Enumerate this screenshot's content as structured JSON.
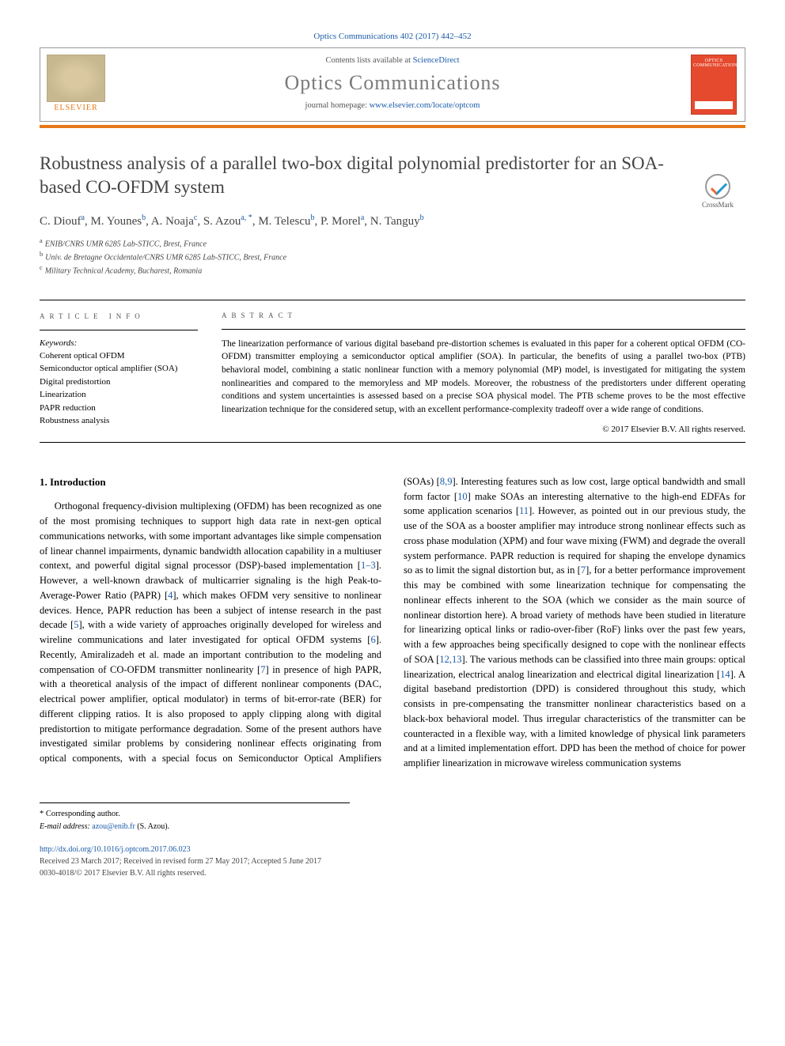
{
  "header": {
    "citation": "Optics Communications 402 (2017) 442–452",
    "contents_line_prefix": "Contents lists available at ",
    "contents_link": "ScienceDirect",
    "journal_name": "Optics Communications",
    "homepage_prefix": "journal homepage: ",
    "homepage_url": "www.elsevier.com/locate/optcom",
    "publisher_logo_label": "ELSEVIER",
    "cover_title": "OPTICS COMMUNICATIONS"
  },
  "crossmark": {
    "label": "CrossMark"
  },
  "article": {
    "title": "Robustness analysis of a parallel two-box digital polynomial predistorter for an SOA-based CO-OFDM system",
    "authors_html": "C. Diouf<sup>a</sup>, M. Younes<sup>b</sup>, A. Noaja<sup>c</sup>, S. Azou<sup>a, *</sup>, M. Telescu<sup>b</sup>, P. Morel<sup>a</sup>, N. Tanguy<sup>b</sup>",
    "affiliations": [
      {
        "sup": "a",
        "text": "ENIB/CNRS UMR 6285 Lab-STICC, Brest, France"
      },
      {
        "sup": "b",
        "text": "Univ. de Bretagne Occidentale/CNRS UMR 6285 Lab-STICC, Brest, France"
      },
      {
        "sup": "c",
        "text": "Military Technical Academy, Bucharest, Romania"
      }
    ]
  },
  "info": {
    "section_label": "article info",
    "keywords_label": "Keywords:",
    "keywords": [
      "Coherent optical OFDM",
      "Semiconductor optical amplifier (SOA)",
      "Digital predistortion",
      "Linearization",
      "PAPR reduction",
      "Robustness analysis"
    ]
  },
  "abstract": {
    "section_label": "abstract",
    "text": "The linearization performance of various digital baseband pre-distortion schemes is evaluated in this paper for a coherent optical OFDM (CO-OFDM) transmitter employing a semiconductor optical amplifier (SOA). In particular, the benefits of using a parallel two-box (PTB) behavioral model, combining a static nonlinear function with a memory polynomial (MP) model, is investigated for mitigating the system nonlinearities and compared to the memoryless and MP models. Moreover, the robustness of the predistorters under different operating conditions and system uncertainties is assessed based on a precise SOA physical model. The PTB scheme proves to be the most effective linearization technique for the considered setup, with an excellent performance-complexity tradeoff over a wide range of conditions.",
    "copyright": "© 2017 Elsevier B.V. All rights reserved."
  },
  "body": {
    "section_number": "1.",
    "section_title": "Introduction",
    "col1": "Orthogonal frequency-division multiplexing (OFDM) has been recognized as one of the most promising techniques to support high data rate in next-gen optical communications networks, with some important advantages like simple compensation of linear channel impairments, dynamic bandwidth allocation capability in a multiuser context, and powerful digital signal processor (DSP)-based implementation [1–3]. However, a well-known drawback of multicarrier signaling is the high Peak-to-Average-Power Ratio (PAPR) [4], which makes OFDM very sensitive to nonlinear devices. Hence, PAPR reduction has been a subject of intense research in the past decade [5], with a wide variety of approaches originally developed for wireless and wireline communications and later investigated for optical OFDM systems [6]. Recently, Amiralizadeh et al. made an important contribution to the modeling and compensation of CO-OFDM transmitter nonlinearity [7] in presence of high PAPR, with a theoretical analysis of the impact of different nonlinear components (DAC, electrical power amplifier, optical modulator) in terms of bit-error-rate (BER) for different clipping ratios. It is also proposed to apply clipping along with digital predistortion to mitigate performance degradation. Some of the present authors have investigated similar problems by considering nonlinear effects originating from optical components, with a special focus on Semiconductor Optical Amplifiers (SOAs) [8,9]. Interesting features such as low cost, large",
    "col2": "optical bandwidth and small form factor [10] make SOAs an interesting alternative to the high-end EDFAs for some application scenarios [11]. However, as pointed out in our previous study, the use of the SOA as a booster amplifier may introduce strong nonlinear effects such as cross phase modulation (XPM) and four wave mixing (FWM) and degrade the overall system performance. PAPR reduction is required for shaping the envelope dynamics so as to limit the signal distortion but, as in [7], for a better performance improvement this may be combined with some linearization technique for compensating the nonlinear effects inherent to the SOA (which we consider as the main source of nonlinear distortion here). A broad variety of methods have been studied in literature for linearizing optical links or radio-over-fiber (RoF) links over the past few years, with a few approaches being specifically designed to cope with the nonlinear effects of SOA [12,13]. The various methods can be classified into three main groups: optical linearization, electrical analog linearization and electrical digital linearization [14]. A digital baseband predistortion (DPD) is considered throughout this study, which consists in pre-compensating the transmitter nonlinear characteristics based on a black-box behavioral model. Thus irregular characteristics of the transmitter can be counteracted in a flexible way, with a limited knowledge of physical link parameters and at a limited implementation effort. DPD has been the method of choice for power amplifier linearization in microwave wireless communication systems",
    "refs": {
      "r1_3": "1–3",
      "r4": "4",
      "r5": "5",
      "r6": "6",
      "r7a": "7",
      "r8_9": "8,9",
      "r10": "10",
      "r11": "11",
      "r7b": "7",
      "r12_13": "12,13",
      "r14": "14"
    }
  },
  "footnotes": {
    "corresponding": "Corresponding author.",
    "email_label": "E-mail address:",
    "email": "azou@enib.fr",
    "email_person": "(S. Azou)."
  },
  "bottom": {
    "doi": "http://dx.doi.org/10.1016/j.optcom.2017.06.023",
    "received": "Received 23 March 2017; Received in revised form 27 May 2017; Accepted 5 June 2017",
    "issn_copyright": "0030-4018/© 2017 Elsevier B.V. All rights reserved."
  },
  "colors": {
    "link": "#1a5ba8",
    "elsevier_orange": "#e67817",
    "cover_red": "#e64a2e"
  }
}
